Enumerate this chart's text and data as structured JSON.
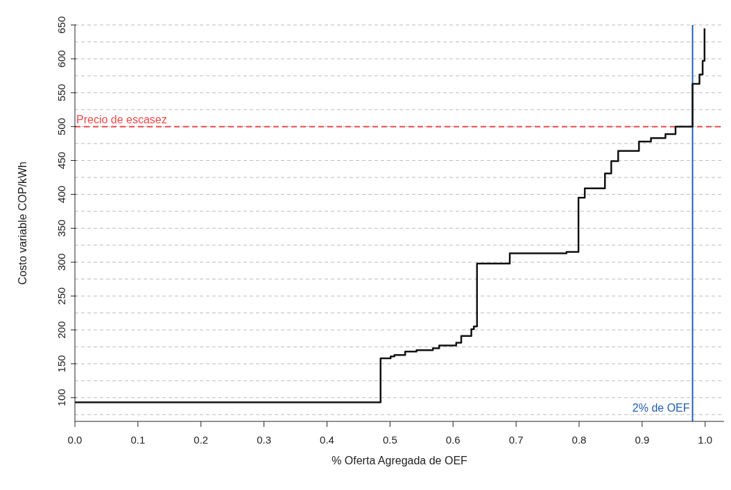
{
  "chart_data": {
    "type": "step",
    "xlabel": "% Oferta Agregada de OEF",
    "ylabel": "Costo variable COP/kWh",
    "x": [
      0,
      0.485,
      0.501,
      0.507,
      0.524,
      0.542,
      0.568,
      0.578,
      0.605,
      0.613,
      0.629,
      0.633,
      0.638,
      0.69,
      0.78,
      0.799,
      0.809,
      0.841,
      0.851,
      0.862,
      0.895,
      0.914,
      0.937,
      0.953,
      0.98,
      0.991,
      0.996,
      0.999
    ],
    "series": [
      {
        "color": "#111111",
        "values": [
          93,
          158,
          161,
          163,
          168,
          170,
          173,
          177,
          181,
          191,
          201,
          205,
          298,
          313,
          315,
          395,
          409,
          431,
          449,
          464,
          478,
          483,
          489,
          500,
          563,
          577,
          597,
          645
        ]
      }
    ],
    "xlim": [
      0,
      1.03
    ],
    "xticks": [
      {
        "value": 0,
        "label": "0.0"
      },
      0.1,
      0.2,
      0.3,
      0.4,
      0.5,
      0.6,
      0.7,
      0.8,
      0.9,
      {
        "value": 1,
        "label": "1.0"
      }
    ],
    "ylim": [
      65,
      650
    ],
    "yticks": [
      {
        "value": 75,
        "label": null
      },
      100,
      {
        "value": 125,
        "label": null
      },
      150,
      {
        "value": 175,
        "label": null
      },
      200,
      {
        "value": 225,
        "label": null
      },
      250,
      {
        "value": 275,
        "label": null
      },
      300,
      {
        "value": 325,
        "label": null
      },
      350,
      {
        "value": 375,
        "label": null
      },
      400,
      {
        "value": 425,
        "label": null
      },
      450,
      {
        "value": 475,
        "label": null
      },
      500,
      {
        "value": 525,
        "label": null
      },
      550,
      {
        "value": 575,
        "label": null
      },
      600,
      {
        "value": 625,
        "label": null
      },
      650
    ],
    "grid": "y",
    "ref_lines": [
      {
        "axis": "y",
        "value": 500,
        "label": "Precio de escasez",
        "color": "#f04a4a",
        "line_style": "dashed"
      },
      {
        "axis": "x",
        "value": 0.98,
        "label": "2% de OEF",
        "color": "#1f5fb4",
        "line_style": "solid"
      }
    ]
  }
}
